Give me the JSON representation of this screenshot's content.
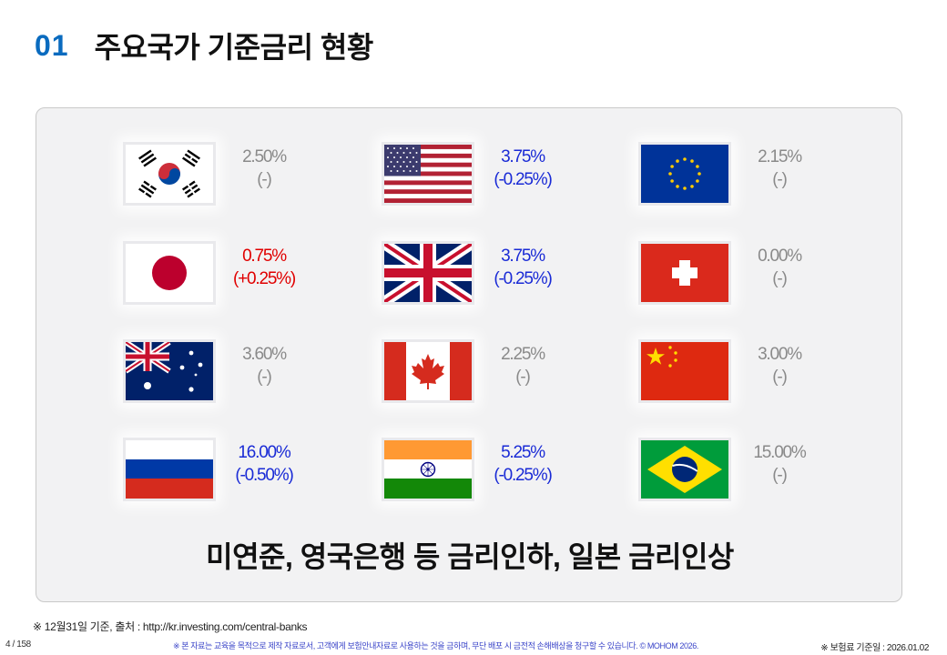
{
  "header": {
    "number": "01",
    "title": "주요국가 기준금리 현황"
  },
  "rates": [
    {
      "country": "korea",
      "rate": "2.50%",
      "change": "(-)",
      "color": "gray"
    },
    {
      "country": "usa",
      "rate": "3.75%",
      "change": "(-0.25%)",
      "color": "blue"
    },
    {
      "country": "eu",
      "rate": "2.15%",
      "change": "(-)",
      "color": "gray"
    },
    {
      "country": "japan",
      "rate": "0.75%",
      "change": "(+0.25%)",
      "color": "red"
    },
    {
      "country": "uk",
      "rate": "3.75%",
      "change": "(-0.25%)",
      "color": "blue"
    },
    {
      "country": "switzerland",
      "rate": "0.00%",
      "change": "(-)",
      "color": "gray"
    },
    {
      "country": "australia",
      "rate": "3.60%",
      "change": "(-)",
      "color": "gray"
    },
    {
      "country": "canada",
      "rate": "2.25%",
      "change": "(-)",
      "color": "gray"
    },
    {
      "country": "china",
      "rate": "3.00%",
      "change": "(-)",
      "color": "gray"
    },
    {
      "country": "russia",
      "rate": "16.00%",
      "change": "(-0.50%)",
      "color": "blue"
    },
    {
      "country": "india",
      "rate": "5.25%",
      "change": "(-0.25%)",
      "color": "blue"
    },
    {
      "country": "brazil",
      "rate": "15.00%",
      "change": "(-)",
      "color": "gray"
    }
  ],
  "headline": "미연준, 영국은행 등 금리인하, 일본 금리인상",
  "source": "※ 12월31일 기준, 출처 : http://kr.investing.com/central-banks",
  "footer": {
    "page": "4 / 158",
    "disclaimer": "※ 본 자료는 교육을 목적으로 제작 자료로서, 고객에게 보험안내자료로 사용하는 것을 금하며, 무단 배포 시 금전적 손해배상을 청구할 수 있습니다. © MOHOM 2026.",
    "date": "※ 보험료 기준일 : 2026.01.02"
  }
}
